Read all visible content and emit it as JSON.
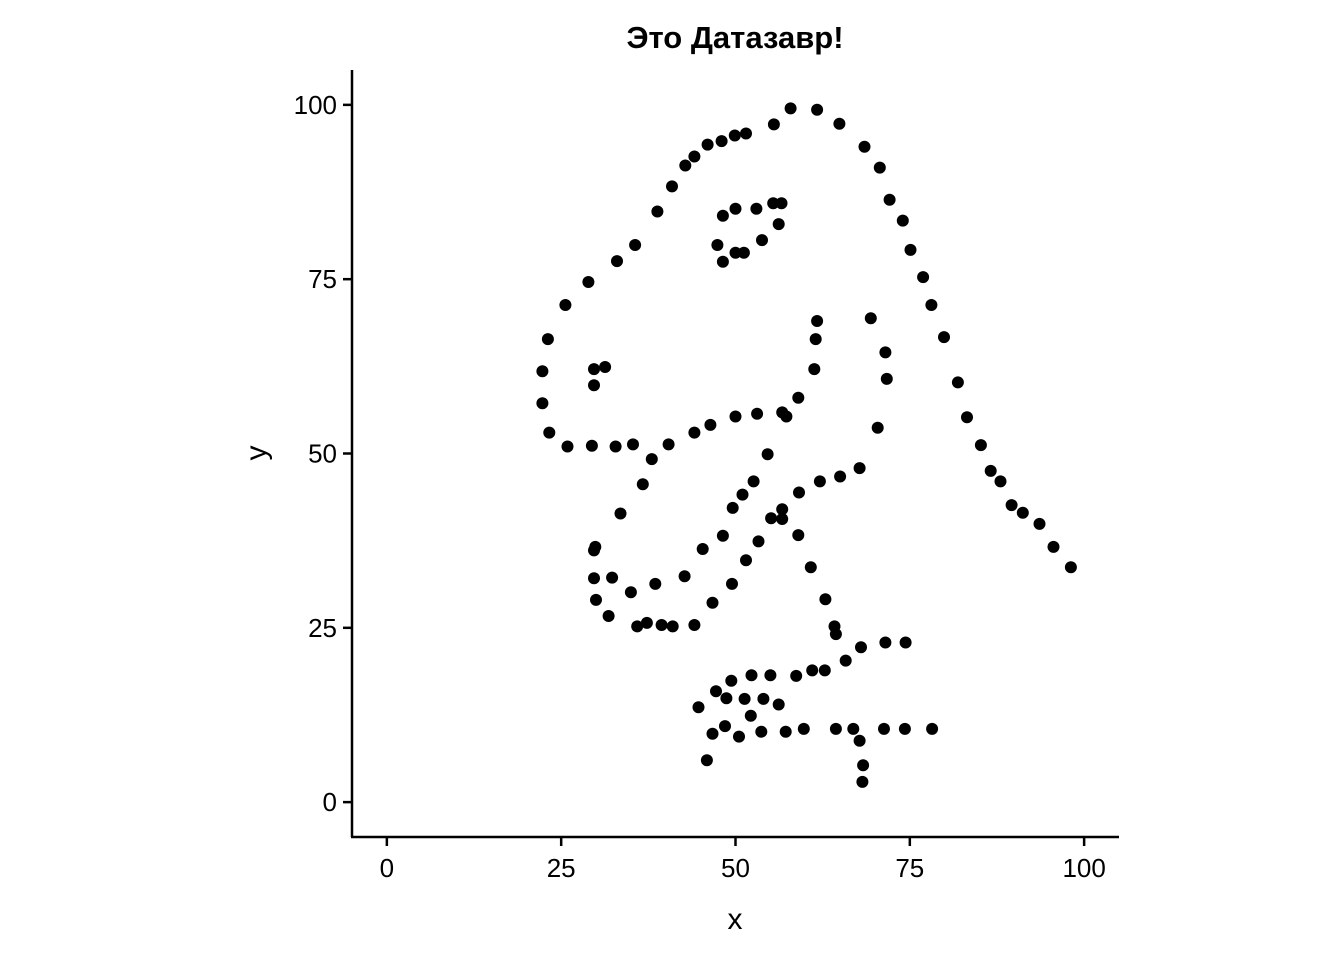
{
  "chart_data": {
    "type": "scatter",
    "title": "Это Датазавр!",
    "xlabel": "x",
    "ylabel": "y",
    "xlim": [
      -5,
      105
    ],
    "ylim": [
      -5,
      105
    ],
    "xticks": [
      0,
      25,
      50,
      75,
      100
    ],
    "yticks": [
      0,
      25,
      50,
      75,
      100
    ],
    "xtick_labels": [
      "0",
      "25",
      "50",
      "75",
      "100"
    ],
    "ytick_labels": [
      "0",
      "25",
      "50",
      "75",
      "100"
    ],
    "grid": false,
    "point_color": "#000000",
    "points": [
      [
        22.3,
        61.8
      ],
      [
        22.3,
        57.2
      ],
      [
        23.1,
        66.4
      ],
      [
        23.3,
        53.0
      ],
      [
        25.6,
        71.3
      ],
      [
        25.9,
        51.0
      ],
      [
        28.9,
        74.6
      ],
      [
        29.4,
        51.1
      ],
      [
        29.7,
        62.1
      ],
      [
        29.7,
        59.8
      ],
      [
        29.7,
        36.1
      ],
      [
        29.9,
        36.6
      ],
      [
        29.7,
        32.1
      ],
      [
        30.0,
        29.0
      ],
      [
        31.3,
        62.4
      ],
      [
        31.8,
        26.7
      ],
      [
        32.3,
        32.2
      ],
      [
        33.0,
        77.6
      ],
      [
        32.8,
        51.0
      ],
      [
        33.5,
        41.4
      ],
      [
        35.0,
        30.1
      ],
      [
        35.3,
        51.3
      ],
      [
        35.6,
        79.9
      ],
      [
        35.9,
        25.2
      ],
      [
        36.7,
        45.6
      ],
      [
        37.3,
        25.7
      ],
      [
        38.0,
        49.2
      ],
      [
        38.5,
        31.3
      ],
      [
        38.8,
        84.7
      ],
      [
        39.4,
        25.4
      ],
      [
        40.4,
        51.3
      ],
      [
        40.9,
        88.3
      ],
      [
        41.0,
        25.2
      ],
      [
        42.7,
        32.4
      ],
      [
        42.8,
        91.3
      ],
      [
        44.1,
        92.6
      ],
      [
        44.1,
        53.0
      ],
      [
        44.1,
        25.4
      ],
      [
        44.7,
        13.6
      ],
      [
        45.3,
        36.3
      ],
      [
        45.9,
        6.0
      ],
      [
        46.0,
        94.3
      ],
      [
        46.4,
        54.1
      ],
      [
        46.7,
        28.6
      ],
      [
        46.7,
        9.8
      ],
      [
        47.2,
        15.9
      ],
      [
        47.4,
        79.9
      ],
      [
        48.0,
        94.8
      ],
      [
        48.2,
        77.5
      ],
      [
        48.2,
        38.2
      ],
      [
        48.2,
        84.1
      ],
      [
        48.5,
        10.9
      ],
      [
        48.7,
        14.9
      ],
      [
        49.4,
        17.4
      ],
      [
        49.5,
        31.3
      ],
      [
        49.6,
        42.2
      ],
      [
        49.9,
        95.6
      ],
      [
        50.0,
        85.1
      ],
      [
        50.0,
        55.3
      ],
      [
        50.0,
        78.8
      ],
      [
        50.5,
        9.4
      ],
      [
        51.0,
        44.1
      ],
      [
        51.2,
        78.8
      ],
      [
        51.3,
        14.8
      ],
      [
        51.5,
        95.9
      ],
      [
        51.5,
        34.7
      ],
      [
        52.2,
        12.4
      ],
      [
        52.3,
        18.2
      ],
      [
        52.6,
        46.0
      ],
      [
        53.0,
        85.1
      ],
      [
        53.1,
        55.7
      ],
      [
        53.3,
        37.4
      ],
      [
        53.7,
        10.1
      ],
      [
        53.8,
        80.6
      ],
      [
        54.0,
        14.8
      ],
      [
        54.6,
        49.9
      ],
      [
        55.0,
        18.2
      ],
      [
        55.1,
        40.7
      ],
      [
        55.4,
        85.9
      ],
      [
        55.5,
        97.2
      ],
      [
        56.2,
        82.9
      ],
      [
        56.2,
        14.0
      ],
      [
        56.6,
        85.9
      ],
      [
        56.7,
        55.9
      ],
      [
        56.7,
        40.6
      ],
      [
        56.7,
        42.0
      ],
      [
        57.2,
        10.1
      ],
      [
        57.3,
        55.3
      ],
      [
        57.9,
        99.5
      ],
      [
        58.7,
        18.1
      ],
      [
        59.0,
        58.0
      ],
      [
        59.0,
        38.3
      ],
      [
        59.1,
        44.4
      ],
      [
        59.8,
        10.5
      ],
      [
        60.8,
        33.7
      ],
      [
        61.0,
        18.9
      ],
      [
        61.3,
        62.1
      ],
      [
        61.5,
        66.4
      ],
      [
        61.7,
        69.0
      ],
      [
        61.7,
        99.3
      ],
      [
        62.1,
        46.0
      ],
      [
        62.8,
        18.9
      ],
      [
        62.9,
        29.1
      ],
      [
        64.2,
        25.2
      ],
      [
        64.4,
        24.1
      ],
      [
        64.4,
        10.5
      ],
      [
        64.9,
        97.3
      ],
      [
        65.0,
        46.7
      ],
      [
        65.8,
        20.3
      ],
      [
        66.9,
        10.5
      ],
      [
        67.8,
        8.8
      ],
      [
        67.8,
        47.9
      ],
      [
        68.0,
        22.2
      ],
      [
        68.2,
        2.9
      ],
      [
        68.3,
        5.3
      ],
      [
        68.5,
        94.0
      ],
      [
        69.4,
        69.4
      ],
      [
        70.4,
        53.7
      ],
      [
        70.7,
        91.0
      ],
      [
        71.3,
        10.5
      ],
      [
        71.5,
        22.9
      ],
      [
        71.5,
        64.5
      ],
      [
        71.7,
        60.7
      ],
      [
        72.1,
        86.4
      ],
      [
        74.0,
        83.4
      ],
      [
        74.3,
        10.5
      ],
      [
        74.4,
        22.9
      ],
      [
        75.1,
        79.2
      ],
      [
        76.9,
        75.3
      ],
      [
        78.1,
        71.3
      ],
      [
        78.2,
        10.5
      ],
      [
        79.9,
        66.7
      ],
      [
        81.9,
        60.2
      ],
      [
        83.2,
        55.2
      ],
      [
        85.2,
        51.2
      ],
      [
        86.6,
        47.5
      ],
      [
        88.0,
        46.0
      ],
      [
        89.6,
        42.6
      ],
      [
        91.2,
        41.5
      ],
      [
        93.6,
        39.9
      ],
      [
        95.6,
        36.6
      ],
      [
        98.1,
        33.7
      ]
    ]
  }
}
